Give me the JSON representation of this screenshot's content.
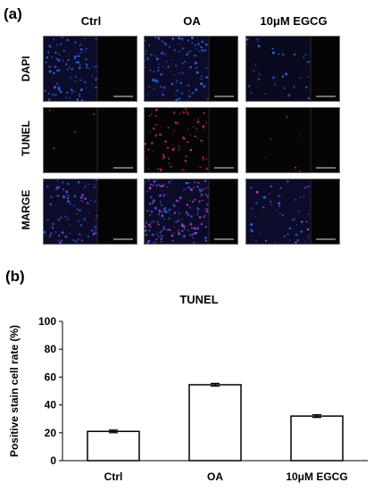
{
  "panel_a": {
    "label": "(a)",
    "columns": [
      "Ctrl",
      "OA",
      "10μM EGCG"
    ],
    "rows": [
      "DAPI",
      "TUNEL",
      "MARGE"
    ]
  },
  "panel_b": {
    "label": "(b)"
  },
  "chart_data": {
    "type": "bar",
    "title": "TUNEL",
    "categories": [
      "Ctrl",
      "OA",
      "10μM EGCG"
    ],
    "values": [
      21,
      54.5,
      32
    ],
    "errors": [
      1,
      1,
      1
    ],
    "ylabel": "Positive stain cell rate (%)",
    "xlabel": "",
    "ylim": [
      0,
      100
    ],
    "yticks": [
      0,
      20,
      40,
      60,
      80,
      100
    ],
    "grid": false,
    "bar_fill": "#ffffff",
    "bar_stroke": "#000000"
  }
}
